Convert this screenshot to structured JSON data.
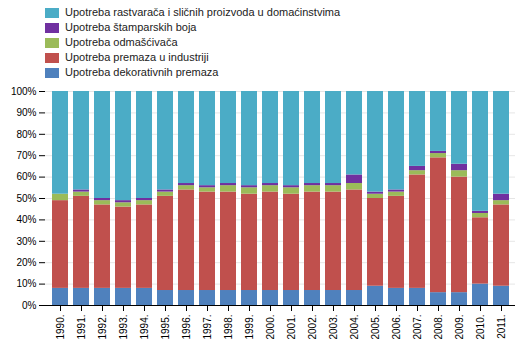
{
  "chart_data": {
    "type": "bar",
    "stacked": true,
    "categories": [
      "1990.",
      "1991.",
      "1992.",
      "1993.",
      "1994.",
      "1995.",
      "1996.",
      "1997.",
      "1998.",
      "1999.",
      "2000.",
      "2001.",
      "2002.",
      "2003.",
      "2004.",
      "2005.",
      "2006.",
      "2007.",
      "2008.",
      "2009.",
      "2010.",
      "2011."
    ],
    "series": [
      {
        "name": "Upotreba dekorativnih premaza",
        "color": "#4f81bd",
        "values": [
          8,
          8,
          8,
          8,
          8,
          7,
          7,
          7,
          7,
          7,
          7,
          7,
          7,
          7,
          7,
          9,
          8,
          8,
          6,
          6,
          10,
          9
        ]
      },
      {
        "name": "Upotreba premaza u industriji",
        "color": "#c0504d",
        "values": [
          41,
          43,
          39,
          38,
          39,
          44,
          47,
          46,
          46,
          45,
          46,
          45,
          46,
          46,
          47,
          41,
          43,
          53,
          63,
          54,
          31,
          38
        ]
      },
      {
        "name": "Upotreba odmašćivača",
        "color": "#9bbb59",
        "values": [
          3,
          2,
          2,
          2,
          2,
          2,
          2,
          2,
          3,
          3,
          3,
          3,
          3,
          3,
          3,
          2,
          2,
          2,
          2,
          3,
          2,
          2
        ]
      },
      {
        "name": "Upotreba štamparskih boja",
        "color": "#7030a0",
        "values": [
          0,
          1,
          1,
          1,
          1,
          1,
          1,
          1,
          1,
          1,
          1,
          1,
          1,
          1,
          4,
          1,
          1,
          2,
          1,
          3,
          1,
          3
        ]
      },
      {
        "name": "Upotreba rastvarača i sličnih proizvoda u domaćinstvima",
        "color": "#4bacc6",
        "values": [
          48,
          46,
          50,
          51,
          50,
          46,
          43,
          44,
          43,
          44,
          43,
          44,
          43,
          43,
          39,
          47,
          46,
          35,
          28,
          34,
          56,
          48
        ]
      }
    ],
    "ylim": [
      0,
      100
    ],
    "yticks": [
      {
        "value": 0,
        "label": "0%"
      },
      {
        "value": 10,
        "label": "10%"
      },
      {
        "value": 20,
        "label": "20%"
      },
      {
        "value": 30,
        "label": "30%"
      },
      {
        "value": 40,
        "label": "40%"
      },
      {
        "value": 50,
        "label": "50%"
      },
      {
        "value": 60,
        "label": "60%"
      },
      {
        "value": 70,
        "label": "70%"
      },
      {
        "value": 80,
        "label": "80%"
      },
      {
        "value": 90,
        "label": "90%"
      },
      {
        "value": 100,
        "label": "100%"
      }
    ],
    "grid": true,
    "legend": "upper left"
  }
}
